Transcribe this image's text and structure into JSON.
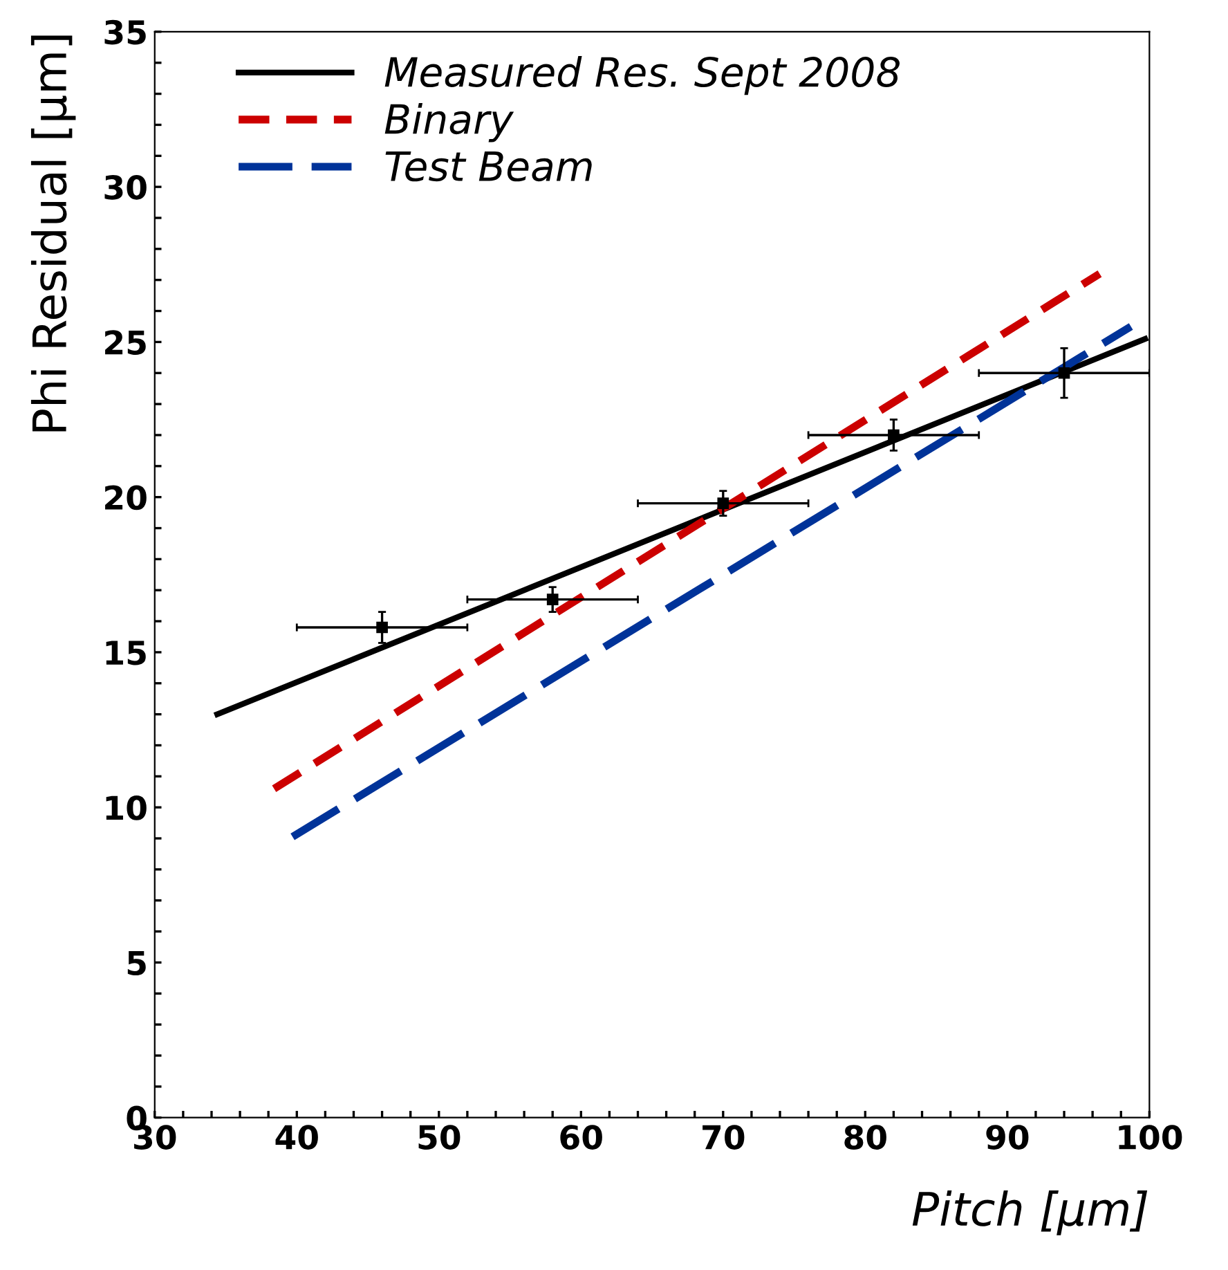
{
  "chart_data": {
    "type": "line",
    "xlabel": "Pitch [μm]",
    "ylabel": "Phi Residual [μm]",
    "xlim": [
      30,
      100
    ],
    "ylim": [
      0,
      35
    ],
    "xticks": [
      30,
      {
        "value": 32,
        "label": null
      },
      {
        "value": 34,
        "label": null
      },
      {
        "value": 36,
        "label": null
      },
      {
        "value": 38,
        "label": null
      },
      40,
      {
        "value": 42,
        "label": null
      },
      {
        "value": 44,
        "label": null
      },
      {
        "value": 46,
        "label": null
      },
      {
        "value": 48,
        "label": null
      },
      50,
      {
        "value": 52,
        "label": null
      },
      {
        "value": 54,
        "label": null
      },
      {
        "value": 56,
        "label": null
      },
      {
        "value": 58,
        "label": null
      },
      60,
      {
        "value": 62,
        "label": null
      },
      {
        "value": 64,
        "label": null
      },
      {
        "value": 66,
        "label": null
      },
      {
        "value": 68,
        "label": null
      },
      70,
      {
        "value": 72,
        "label": null
      },
      {
        "value": 74,
        "label": null
      },
      {
        "value": 76,
        "label": null
      },
      {
        "value": 78,
        "label": null
      },
      80,
      {
        "value": 82,
        "label": null
      },
      {
        "value": 84,
        "label": null
      },
      {
        "value": 86,
        "label": null
      },
      {
        "value": 88,
        "label": null
      },
      90,
      {
        "value": 92,
        "label": null
      },
      {
        "value": 94,
        "label": null
      },
      {
        "value": 96,
        "label": null
      },
      {
        "value": 98,
        "label": null
      },
      100
    ],
    "yticks": [
      0,
      {
        "value": 1,
        "label": null
      },
      {
        "value": 2,
        "label": null
      },
      {
        "value": 3,
        "label": null
      },
      {
        "value": 4,
        "label": null
      },
      5,
      {
        "value": 6,
        "label": null
      },
      {
        "value": 7,
        "label": null
      },
      {
        "value": 8,
        "label": null
      },
      {
        "value": 9,
        "label": null
      },
      10,
      {
        "value": 11,
        "label": null
      },
      {
        "value": 12,
        "label": null
      },
      {
        "value": 13,
        "label": null
      },
      {
        "value": 14,
        "label": null
      },
      15,
      {
        "value": 16,
        "label": null
      },
      {
        "value": 17,
        "label": null
      },
      {
        "value": 18,
        "label": null
      },
      {
        "value": 19,
        "label": null
      },
      20,
      {
        "value": 21,
        "label": null
      },
      {
        "value": 22,
        "label": null
      },
      {
        "value": 23,
        "label": null
      },
      {
        "value": 24,
        "label": null
      },
      25,
      {
        "value": 26,
        "label": null
      },
      {
        "value": 27,
        "label": null
      },
      {
        "value": 28,
        "label": null
      },
      {
        "value": 29,
        "label": null
      },
      30,
      {
        "value": 31,
        "label": null
      },
      {
        "value": 32,
        "label": null
      },
      {
        "value": 33,
        "label": null
      },
      {
        "value": 34,
        "label": null
      },
      35
    ],
    "grid": false,
    "legend": "top left",
    "series": [
      {
        "type": "scatter",
        "color": "#000000",
        "marker": "square",
        "x": [
          46,
          58,
          70,
          82,
          94
        ],
        "values": [
          15.8,
          16.7,
          19.8,
          22.0,
          24.0
        ],
        "errors": [
          0.5,
          0.4,
          0.4,
          0.5,
          0.8
        ],
        "xerrors": [
          6,
          6,
          6,
          6,
          6
        ]
      },
      {
        "name": "Measured Res. Sept 2008",
        "color": "#000000",
        "line_style": "solid",
        "x": [
          34.4,
          99.7
        ],
        "values": [
          13.0,
          25.1
        ]
      },
      {
        "name": "Binary",
        "color": "#cc0000",
        "line_style": "dashed",
        "x": [
          38.4,
          96.5
        ],
        "values": [
          10.6,
          27.2
        ]
      },
      {
        "name": "Test Beam",
        "color": "#003399",
        "line_style": "longdash",
        "x": [
          39.7,
          98.7
        ],
        "values": [
          9.05,
          25.5
        ]
      }
    ]
  }
}
